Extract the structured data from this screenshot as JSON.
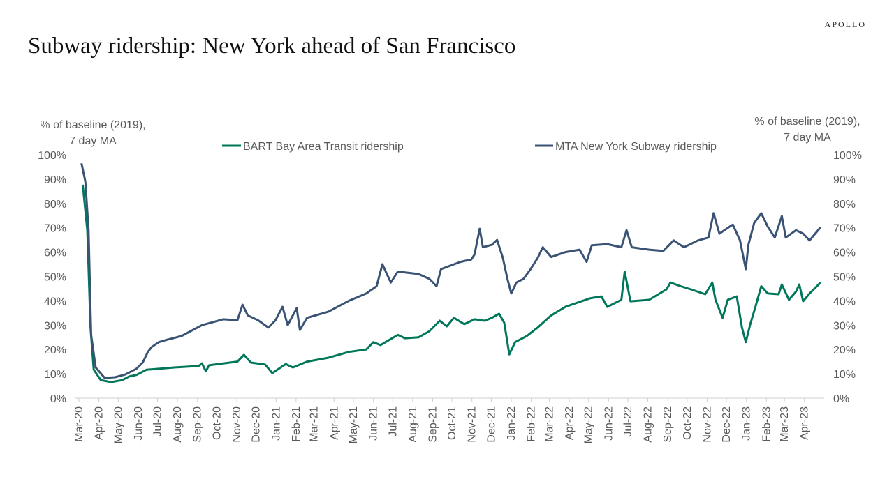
{
  "brand": "APOLLO",
  "title": "Subway ridership: New York ahead of San Francisco",
  "chart_data": {
    "type": "line",
    "title": "Subway ridership: New York ahead of San Francisco",
    "ylabel_left": [
      "% of baseline (2019),",
      "7 day MA"
    ],
    "ylabel_right": [
      "% of baseline (2019),",
      "7 day MA"
    ],
    "ylim": [
      0,
      100
    ],
    "y_ticks": [
      "0%",
      "10%",
      "20%",
      "30%",
      "40%",
      "50%",
      "60%",
      "70%",
      "80%",
      "90%",
      "100%"
    ],
    "x_ticks": [
      "Mar-20",
      "Apr-20",
      "May-20",
      "Jun-20",
      "Jul-20",
      "Aug-20",
      "Sep-20",
      "Oct-20",
      "Nov-20",
      "Dec-20",
      "Jan-21",
      "Feb-21",
      "Mar-21",
      "Apr-21",
      "May-21",
      "Jun-21",
      "Jul-21",
      "Aug-21",
      "Sep-21",
      "Oct-21",
      "Nov-21",
      "Dec-21",
      "Jan-22",
      "Feb-22",
      "Mar-22",
      "Apr-22",
      "May-22",
      "Jun-22",
      "Jul-22",
      "Aug-22",
      "Sep-22",
      "Oct-22",
      "Nov-22",
      "Dec-22",
      "Jan-23",
      "Feb-23",
      "Mar-23",
      "Apr-23"
    ],
    "x_range": [
      "2020-03-01",
      "2023-05-01"
    ],
    "grid": false,
    "legend_placement": "top",
    "series": [
      {
        "name": "BART Bay Area Transit ridership",
        "color": "#00775a",
        "x": [
          "2020-03-07",
          "2020-03-14",
          "2020-03-19",
          "2020-03-24",
          "2020-04-04",
          "2020-04-20",
          "2020-05-07",
          "2020-05-18",
          "2020-05-29",
          "2020-06-14",
          "2020-06-30",
          "2020-07-27",
          "2020-09-03",
          "2020-09-08",
          "2020-09-14",
          "2020-09-19",
          "2020-11-02",
          "2020-11-12",
          "2020-11-23",
          "2020-12-15",
          "2020-12-26",
          "2021-01-16",
          "2021-01-27",
          "2021-02-18",
          "2021-03-23",
          "2021-04-24",
          "2021-05-21",
          "2021-06-01",
          "2021-06-12",
          "2021-07-09",
          "2021-07-20",
          "2021-08-10",
          "2021-08-27",
          "2021-09-12",
          "2021-09-23",
          "2021-10-04",
          "2021-10-20",
          "2021-11-05",
          "2021-11-21",
          "2021-12-02",
          "2021-12-13",
          "2021-12-21",
          "2021-12-29",
          "2022-01-07",
          "2022-01-25",
          "2022-02-11",
          "2022-03-04",
          "2022-03-26",
          "2022-04-11",
          "2022-05-03",
          "2022-05-21",
          "2022-05-30",
          "2022-06-21",
          "2022-06-26",
          "2022-07-05",
          "2022-08-03",
          "2022-08-30",
          "2022-09-05",
          "2022-09-21",
          "2022-10-07",
          "2022-10-29",
          "2022-11-09",
          "2022-11-14",
          "2022-11-25",
          "2022-12-03",
          "2022-12-17",
          "2022-12-25",
          "2022-12-31",
          "2023-01-07",
          "2023-01-15",
          "2023-01-24",
          "2023-02-03",
          "2023-02-20",
          "2023-02-25",
          "2023-03-08",
          "2023-03-19",
          "2023-03-24",
          "2023-03-30",
          "2023-04-09",
          "2023-04-26"
        ],
        "values": [
          87.7,
          69,
          29,
          11.7,
          7.4,
          6.6,
          7.4,
          8.9,
          9.5,
          11.7,
          12,
          12.6,
          13.2,
          14.3,
          11,
          13.5,
          15,
          17.8,
          14.6,
          13.8,
          10.3,
          14,
          12.6,
          15,
          16.6,
          19,
          20,
          23,
          21.8,
          26,
          24.6,
          25,
          27.5,
          31.8,
          29.5,
          33,
          30.4,
          32.4,
          31.8,
          33,
          34.7,
          31,
          18,
          23,
          25.5,
          29,
          34,
          37.5,
          39,
          41,
          41.8,
          37.5,
          40.4,
          52,
          39.8,
          40.4,
          44.7,
          47.5,
          46,
          44.7,
          42.7,
          47.5,
          40.4,
          33,
          40.4,
          41.8,
          29,
          23,
          30.4,
          37.5,
          46,
          43,
          42.7,
          46.7,
          40.4,
          43.8,
          46.7,
          39.8,
          43,
          47.5
        ]
      },
      {
        "name": "MTA New York Subway ridership",
        "color": "#3a5374",
        "x": [
          "2020-03-05",
          "2020-03-11",
          "2020-03-16",
          "2020-03-20",
          "2020-03-27",
          "2020-04-10",
          "2020-04-26",
          "2020-05-12",
          "2020-05-29",
          "2020-06-08",
          "2020-06-16",
          "2020-06-22",
          "2020-07-03",
          "2020-07-16",
          "2020-08-07",
          "2020-09-08",
          "2020-10-11",
          "2020-11-02",
          "2020-11-10",
          "2020-11-18",
          "2020-12-04",
          "2020-12-20",
          "2020-12-31",
          "2021-01-11",
          "2021-01-19",
          "2021-02-02",
          "2021-02-07",
          "2021-02-18",
          "2021-03-23",
          "2021-04-24",
          "2021-05-21",
          "2021-06-06",
          "2021-06-15",
          "2021-06-28",
          "2021-07-09",
          "2021-08-10",
          "2021-08-27",
          "2021-09-07",
          "2021-09-14",
          "2021-10-14",
          "2021-10-31",
          "2021-11-05",
          "2021-11-13",
          "2021-11-18",
          "2021-12-02",
          "2021-12-10",
          "2021-12-19",
          "2021-12-26",
          "2022-01-01",
          "2022-01-09",
          "2022-01-20",
          "2022-01-31",
          "2022-02-11",
          "2022-02-19",
          "2022-03-04",
          "2022-03-26",
          "2022-04-17",
          "2022-04-28",
          "2022-05-06",
          "2022-05-30",
          "2022-06-21",
          "2022-06-29",
          "2022-07-07",
          "2022-08-03",
          "2022-08-25",
          "2022-09-10",
          "2022-09-26",
          "2022-10-18",
          "2022-11-03",
          "2022-11-11",
          "2022-11-20",
          "2022-12-06",
          "2022-12-11",
          "2022-12-22",
          "2022-12-31",
          "2023-01-04",
          "2023-01-13",
          "2023-01-24",
          "2023-02-03",
          "2023-02-14",
          "2023-02-25",
          "2023-03-03",
          "2023-03-19",
          "2023-03-30",
          "2023-04-09",
          "2023-04-26"
        ],
        "values": [
          96.5,
          89,
          69,
          26,
          12.6,
          8.3,
          8.6,
          9.7,
          12,
          14.6,
          19,
          21,
          23,
          24,
          25.5,
          30,
          32.4,
          32,
          38.4,
          34,
          32,
          29,
          32,
          37.5,
          30,
          37,
          28,
          33,
          35.5,
          40,
          43,
          46,
          55,
          47.5,
          52,
          51,
          49,
          46,
          53,
          56,
          57,
          59,
          69.6,
          62,
          63,
          65,
          57.6,
          49,
          43,
          47.5,
          49,
          53,
          57.6,
          62,
          58,
          60,
          61,
          56,
          62.8,
          63.3,
          62,
          69,
          62,
          61,
          60.5,
          64.8,
          62,
          64.8,
          66,
          76,
          67.6,
          70.5,
          71.3,
          64.8,
          53,
          63,
          72,
          76,
          70.5,
          66,
          74.8,
          66,
          69,
          67.6,
          64.8,
          70.2
        ]
      }
    ]
  }
}
